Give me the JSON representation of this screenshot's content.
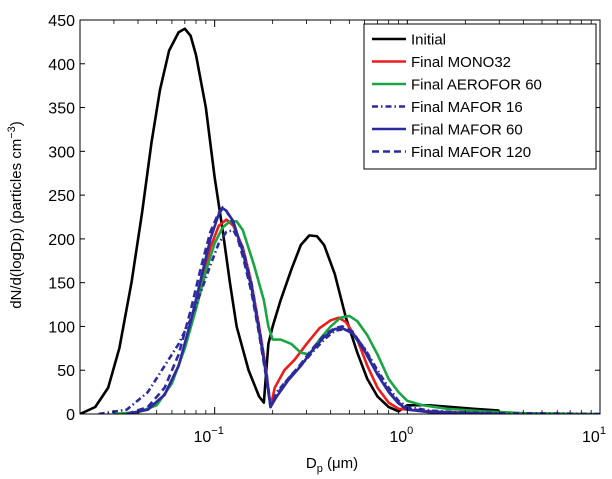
{
  "chart_data": {
    "type": "line",
    "title": "",
    "xlabel": {
      "base": "D",
      "sub": "p",
      "rest": " (μm)"
    },
    "ylabel": {
      "text": "dN/d(logDp) (particles cm",
      "sup": "−3",
      "close": ")"
    },
    "xscale": "log",
    "xlim": [
      0.02,
      10
    ],
    "ylim": [
      0,
      450
    ],
    "grid": false,
    "legend_position": "top-right",
    "x_ticks": [
      {
        "value": 0.1,
        "base": "10",
        "exp": "−1"
      },
      {
        "value": 1,
        "base": "10",
        "exp": "0"
      },
      {
        "value": 10,
        "base": "10",
        "exp": "1"
      }
    ],
    "y_ticks": [
      {
        "value": 0,
        "label": "0"
      },
      {
        "value": 50,
        "label": "50"
      },
      {
        "value": 100,
        "label": "100"
      },
      {
        "value": 150,
        "label": "150"
      },
      {
        "value": 200,
        "label": "200"
      },
      {
        "value": 250,
        "label": "250"
      },
      {
        "value": 300,
        "label": "300"
      },
      {
        "value": 350,
        "label": "350"
      },
      {
        "value": 400,
        "label": "400"
      },
      {
        "value": 450,
        "label": "450"
      }
    ],
    "series": [
      {
        "name": "Initial",
        "color": "#000000",
        "dash": "solid",
        "points": [
          [
            0.02,
            0
          ],
          [
            0.024,
            8
          ],
          [
            0.028,
            30
          ],
          [
            0.032,
            75
          ],
          [
            0.037,
            150
          ],
          [
            0.042,
            230
          ],
          [
            0.047,
            310
          ],
          [
            0.052,
            370
          ],
          [
            0.058,
            415
          ],
          [
            0.065,
            436
          ],
          [
            0.07,
            440
          ],
          [
            0.075,
            432
          ],
          [
            0.08,
            410
          ],
          [
            0.09,
            350
          ],
          [
            0.1,
            270
          ],
          [
            0.11,
            210
          ],
          [
            0.12,
            150
          ],
          [
            0.13,
            100
          ],
          [
            0.15,
            50
          ],
          [
            0.17,
            20
          ],
          [
            0.18,
            13
          ],
          [
            0.19,
            80
          ],
          [
            0.2,
            100
          ],
          [
            0.22,
            130
          ],
          [
            0.25,
            165
          ],
          [
            0.28,
            193
          ],
          [
            0.31,
            204
          ],
          [
            0.34,
            203
          ],
          [
            0.37,
            193
          ],
          [
            0.42,
            160
          ],
          [
            0.48,
            110
          ],
          [
            0.55,
            70
          ],
          [
            0.62,
            40
          ],
          [
            0.7,
            20
          ],
          [
            0.8,
            8
          ],
          [
            0.9,
            3
          ],
          [
            1.0,
            10
          ],
          [
            1.3,
            10
          ],
          [
            1.7,
            8
          ],
          [
            2.2,
            6
          ],
          [
            3.0,
            4
          ]
        ]
      },
      {
        "name": "Final MONO32",
        "color": "#ee1c1c",
        "dash": "solid",
        "points": [
          [
            0.035,
            0
          ],
          [
            0.045,
            5
          ],
          [
            0.055,
            22
          ],
          [
            0.065,
            55
          ],
          [
            0.075,
            100
          ],
          [
            0.085,
            150
          ],
          [
            0.095,
            190
          ],
          [
            0.105,
            215
          ],
          [
            0.115,
            222
          ],
          [
            0.125,
            215
          ],
          [
            0.14,
            190
          ],
          [
            0.155,
            150
          ],
          [
            0.17,
            100
          ],
          [
            0.185,
            50
          ],
          [
            0.195,
            8
          ],
          [
            0.205,
            30
          ],
          [
            0.23,
            50
          ],
          [
            0.26,
            62
          ],
          [
            0.3,
            80
          ],
          [
            0.35,
            98
          ],
          [
            0.4,
            107
          ],
          [
            0.44,
            110
          ],
          [
            0.48,
            105
          ],
          [
            0.55,
            85
          ],
          [
            0.62,
            55
          ],
          [
            0.7,
            30
          ],
          [
            0.8,
            13
          ],
          [
            0.9,
            6
          ],
          [
            1.0,
            5
          ],
          [
            1.3,
            3
          ],
          [
            1.7,
            2
          ],
          [
            2.5,
            1
          ],
          [
            3.0,
            1
          ]
        ]
      },
      {
        "name": "Final AEROFOR 60",
        "color": "#1aa543",
        "dash": "solid",
        "points": [
          [
            0.03,
            0
          ],
          [
            0.04,
            2
          ],
          [
            0.05,
            10
          ],
          [
            0.06,
            35
          ],
          [
            0.07,
            75
          ],
          [
            0.08,
            120
          ],
          [
            0.09,
            163
          ],
          [
            0.1,
            195
          ],
          [
            0.11,
            213
          ],
          [
            0.12,
            220
          ],
          [
            0.13,
            220
          ],
          [
            0.14,
            210
          ],
          [
            0.16,
            170
          ],
          [
            0.18,
            130
          ],
          [
            0.19,
            100
          ],
          [
            0.2,
            85
          ],
          [
            0.22,
            85
          ],
          [
            0.25,
            80
          ],
          [
            0.28,
            70
          ],
          [
            0.31,
            68
          ],
          [
            0.35,
            85
          ],
          [
            0.4,
            100
          ],
          [
            0.45,
            110
          ],
          [
            0.5,
            112
          ],
          [
            0.55,
            106
          ],
          [
            0.62,
            90
          ],
          [
            0.7,
            68
          ],
          [
            0.8,
            40
          ],
          [
            0.9,
            25
          ],
          [
            1.0,
            15
          ],
          [
            1.2,
            10
          ],
          [
            1.6,
            6
          ],
          [
            2.5,
            3
          ],
          [
            4,
            1
          ],
          [
            10,
            0
          ]
        ]
      },
      {
        "name": "Final MAFOR 16",
        "color": "#2b2b9e",
        "dash": "6,3,1.5,3",
        "points": [
          [
            0.025,
            0
          ],
          [
            0.035,
            5
          ],
          [
            0.045,
            25
          ],
          [
            0.055,
            55
          ],
          [
            0.065,
            80
          ],
          [
            0.075,
            108
          ],
          [
            0.085,
            140
          ],
          [
            0.095,
            170
          ],
          [
            0.105,
            195
          ],
          [
            0.115,
            208
          ],
          [
            0.125,
            210
          ],
          [
            0.14,
            190
          ],
          [
            0.155,
            150
          ],
          [
            0.17,
            100
          ],
          [
            0.185,
            50
          ],
          [
            0.195,
            8
          ],
          [
            0.21,
            25
          ],
          [
            0.24,
            40
          ],
          [
            0.28,
            55
          ],
          [
            0.32,
            70
          ],
          [
            0.37,
            85
          ],
          [
            0.42,
            95
          ],
          [
            0.47,
            97
          ],
          [
            0.52,
            92
          ],
          [
            0.6,
            75
          ],
          [
            0.7,
            50
          ],
          [
            0.8,
            30
          ],
          [
            0.9,
            15
          ],
          [
            1.0,
            8
          ],
          [
            1.3,
            4
          ],
          [
            1.8,
            2
          ],
          [
            3,
            1
          ],
          [
            10,
            0
          ]
        ]
      },
      {
        "name": "Final MAFOR 60",
        "color": "#2b2b9e",
        "dash": "solid",
        "points": [
          [
            0.035,
            0
          ],
          [
            0.045,
            5
          ],
          [
            0.055,
            22
          ],
          [
            0.065,
            55
          ],
          [
            0.075,
            105
          ],
          [
            0.085,
            155
          ],
          [
            0.095,
            200
          ],
          [
            0.105,
            228
          ],
          [
            0.11,
            235
          ],
          [
            0.115,
            232
          ],
          [
            0.125,
            220
          ],
          [
            0.14,
            185
          ],
          [
            0.155,
            145
          ],
          [
            0.17,
            95
          ],
          [
            0.185,
            45
          ],
          [
            0.195,
            8
          ],
          [
            0.21,
            20
          ],
          [
            0.24,
            38
          ],
          [
            0.28,
            55
          ],
          [
            0.32,
            72
          ],
          [
            0.37,
            88
          ],
          [
            0.42,
            97
          ],
          [
            0.46,
            98
          ],
          [
            0.52,
            92
          ],
          [
            0.6,
            72
          ],
          [
            0.7,
            45
          ],
          [
            0.8,
            25
          ],
          [
            0.9,
            12
          ],
          [
            1.0,
            5
          ],
          [
            1.3,
            2
          ],
          [
            2,
            1
          ],
          [
            3,
            0
          ]
        ]
      },
      {
        "name": "Final MAFOR 120",
        "color": "#2b2b9e",
        "dash": "7,4",
        "points": [
          [
            0.035,
            0
          ],
          [
            0.045,
            8
          ],
          [
            0.055,
            30
          ],
          [
            0.065,
            68
          ],
          [
            0.075,
            118
          ],
          [
            0.085,
            168
          ],
          [
            0.095,
            208
          ],
          [
            0.105,
            230
          ],
          [
            0.11,
            236
          ],
          [
            0.115,
            232
          ],
          [
            0.125,
            218
          ],
          [
            0.14,
            180
          ],
          [
            0.155,
            140
          ],
          [
            0.17,
            92
          ],
          [
            0.185,
            42
          ],
          [
            0.195,
            8
          ],
          [
            0.21,
            22
          ],
          [
            0.24,
            40
          ],
          [
            0.28,
            57
          ],
          [
            0.32,
            74
          ],
          [
            0.37,
            90
          ],
          [
            0.42,
            98
          ],
          [
            0.46,
            100
          ],
          [
            0.52,
            94
          ],
          [
            0.6,
            74
          ],
          [
            0.7,
            48
          ],
          [
            0.8,
            26
          ],
          [
            0.9,
            13
          ],
          [
            1.0,
            6
          ],
          [
            1.3,
            3
          ],
          [
            2,
            1
          ],
          [
            3,
            0
          ]
        ]
      }
    ]
  }
}
